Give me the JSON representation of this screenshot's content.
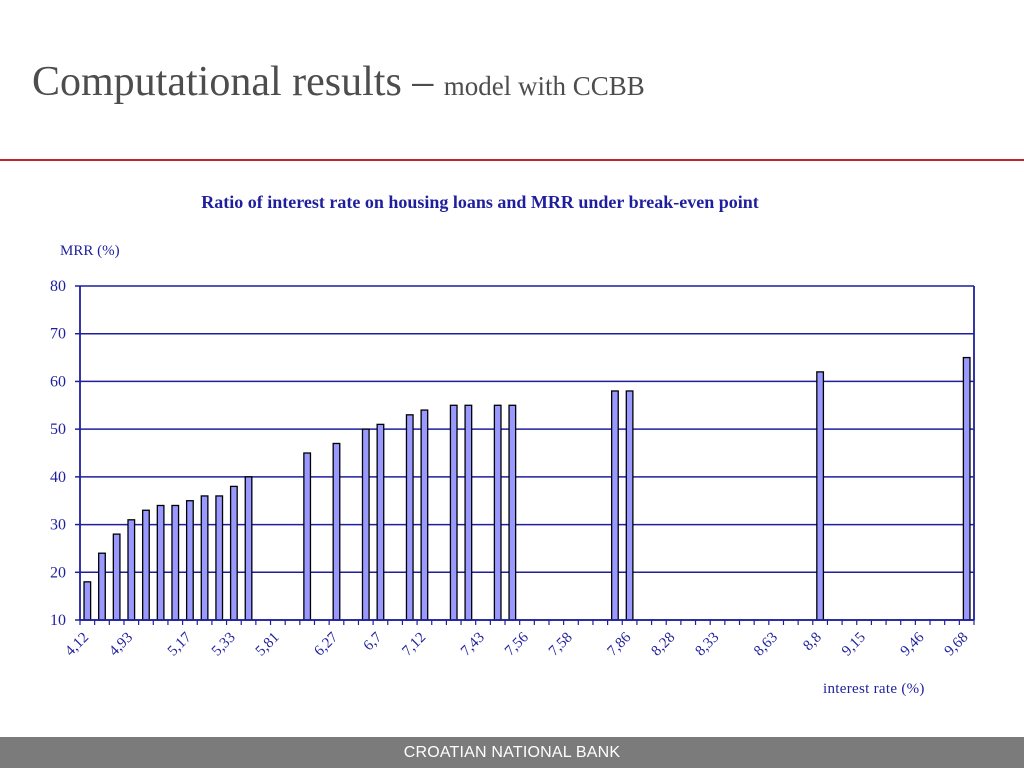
{
  "slide": {
    "title_main": "Computational results – ",
    "title_sub": "model with CCBB",
    "footer": "CROATIAN NATIONAL BANK"
  },
  "colors": {
    "bar_fill": "#9999ff",
    "bar_stroke": "#000000",
    "grid": "#1f1f9e",
    "text": "#1f1f9e",
    "title_rule": "#c0272d",
    "footer_bg": "#7b7b7b"
  },
  "chart_data": {
    "type": "bar",
    "title": "Ratio of interest rate on housing loans and MRR under break-even point",
    "ylabel": "MRR (%)",
    "xlabel": "interest rate (%)",
    "ylim": [
      10,
      80
    ],
    "yticks": [
      10,
      20,
      30,
      40,
      50,
      60,
      70,
      80
    ],
    "grid": true,
    "legend": "none",
    "x_tick_labels": [
      "4,12",
      "4,93",
      "5,17",
      "5,33",
      "5,81",
      "6,27",
      "6,7",
      "7,12",
      "7,43",
      "7,56",
      "7,58",
      "7,86",
      "8,28",
      "8,33",
      "8,63",
      "8,8",
      "9,15",
      "9,46",
      "9,68"
    ],
    "values": [
      18,
      24,
      28,
      31,
      33,
      34,
      34,
      35,
      36,
      36,
      38,
      40,
      null,
      null,
      null,
      45,
      null,
      47,
      null,
      50,
      51,
      null,
      53,
      54,
      null,
      55,
      55,
      null,
      55,
      55,
      null,
      null,
      null,
      null,
      null,
      null,
      58,
      58,
      null,
      null,
      null,
      null,
      null,
      null,
      null,
      null,
      null,
      null,
      null,
      null,
      62,
      null,
      null,
      null,
      null,
      null,
      null,
      null,
      null,
      null,
      65
    ]
  }
}
